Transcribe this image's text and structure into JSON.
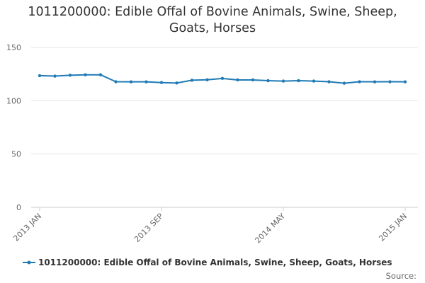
{
  "title_lines": [
    "1011200000: Edible Offal of Bovine Animals, Swine, Sheep,",
    "Goats, Horses"
  ],
  "source_label": "Source:",
  "colors": {
    "series": "#1f7ab5",
    "grid": "#e6e6e6",
    "axis_text": "#666666"
  },
  "chart_data": {
    "type": "line",
    "title": "1011200000: Edible Offal of Bovine Animals, Swine, Sheep, Goats, Horses",
    "xlabel": "",
    "ylabel": "",
    "ylim": [
      0,
      150
    ],
    "yticks": [
      0,
      50,
      100,
      150
    ],
    "grid": true,
    "legend_position": "bottom",
    "x": [
      "2013 JAN",
      "2013 FEB",
      "2013 MAR",
      "2013 APR",
      "2013 MAY",
      "2013 JUN",
      "2013 JUL",
      "2013 AUG",
      "2013 SEP",
      "2013 OCT",
      "2013 NOV",
      "2013 DEC",
      "2014 JAN",
      "2014 FEB",
      "2014 MAR",
      "2014 APR",
      "2014 MAY",
      "2014 JUN",
      "2014 JUL",
      "2014 AUG",
      "2014 SEP",
      "2014 OCT",
      "2014 NOV",
      "2014 DEC",
      "2015 JAN"
    ],
    "xtick_labels": [
      "2013 JAN",
      "2013 SEP",
      "2014 MAY",
      "2015 JAN"
    ],
    "series": [
      {
        "name": "1011200000: Edible Offal of Bovine Animals, Swine, Sheep, Goats, Horses",
        "values": [
          123.5,
          123.1,
          123.9,
          124.3,
          124.3,
          117.8,
          117.7,
          117.7,
          117.0,
          116.6,
          119.2,
          119.6,
          120.9,
          119.5,
          119.5,
          118.8,
          118.4,
          118.8,
          118.4,
          117.8,
          116.4,
          117.8,
          117.7,
          117.8,
          117.7
        ]
      }
    ]
  }
}
